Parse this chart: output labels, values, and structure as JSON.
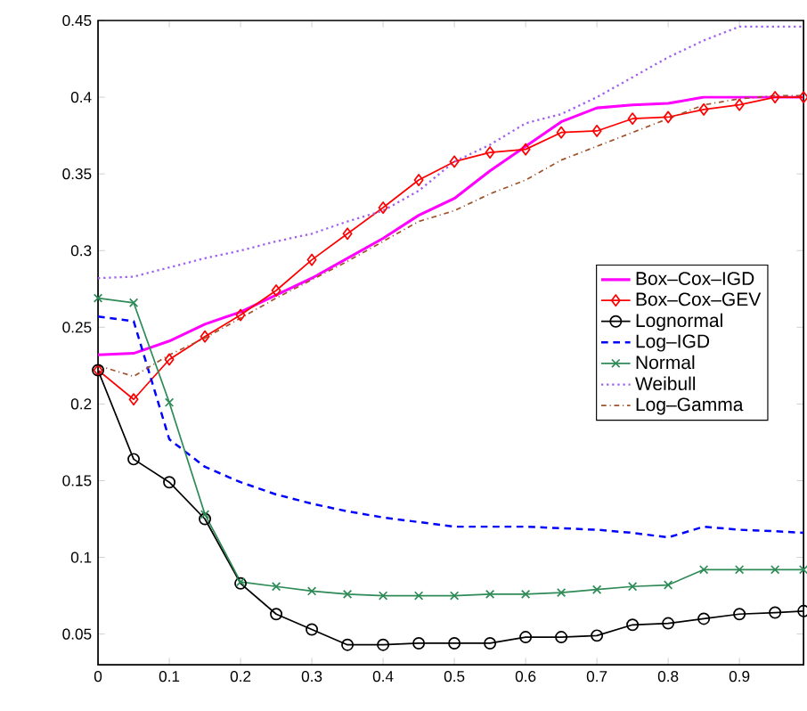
{
  "chart_data": {
    "type": "line",
    "x": [
      0,
      0.05,
      0.1,
      0.15,
      0.2,
      0.25,
      0.3,
      0.35,
      0.4,
      0.45,
      0.5,
      0.55,
      0.6,
      0.65,
      0.7,
      0.75,
      0.8,
      0.85,
      0.9,
      0.95,
      0.99
    ],
    "xlim": [
      0,
      0.99
    ],
    "ylim": [
      0.03,
      0.45
    ],
    "xticks": [
      0,
      0.1,
      0.2,
      0.3,
      0.4,
      0.5,
      0.6,
      0.7,
      0.8,
      0.9
    ],
    "yticks": [
      0.05,
      0.1,
      0.15,
      0.2,
      0.25,
      0.3,
      0.35,
      0.4,
      0.45
    ],
    "grid": false,
    "legend": "right",
    "series": [
      {
        "name": "Box–Cox–IGD",
        "color": "#ff00ff",
        "marker": "none",
        "line_style": "solid",
        "values": [
          0.232,
          0.233,
          0.241,
          0.252,
          0.26,
          0.271,
          0.282,
          0.295,
          0.308,
          0.323,
          0.334,
          0.352,
          0.368,
          0.384,
          0.393,
          0.395,
          0.396,
          0.4,
          0.4,
          0.4,
          0.4
        ]
      },
      {
        "name": "Box–Cox–GEV",
        "color": "#ff0000",
        "marker": "diamond",
        "line_style": "solid",
        "values": [
          0.222,
          0.203,
          0.229,
          0.244,
          0.258,
          0.274,
          0.294,
          0.311,
          0.328,
          0.346,
          0.358,
          0.364,
          0.366,
          0.377,
          0.378,
          0.386,
          0.387,
          0.392,
          0.395,
          0.4,
          0.4
        ]
      },
      {
        "name": "Lognormal",
        "color": "#000000",
        "marker": "circle",
        "line_style": "solid",
        "values": [
          0.222,
          0.164,
          0.149,
          0.125,
          0.083,
          0.063,
          0.053,
          0.043,
          0.043,
          0.044,
          0.044,
          0.044,
          0.048,
          0.048,
          0.049,
          0.056,
          0.057,
          0.06,
          0.063,
          0.064,
          0.065
        ]
      },
      {
        "name": "Log–IGD",
        "color": "#0000ff",
        "marker": "none",
        "line_style": "dashed",
        "values": [
          0.257,
          0.254,
          0.177,
          0.159,
          0.149,
          0.141,
          0.135,
          0.13,
          0.126,
          0.123,
          0.12,
          0.12,
          0.12,
          0.119,
          0.118,
          0.116,
          0.113,
          0.12,
          0.118,
          0.117,
          0.116
        ]
      },
      {
        "name": "Normal",
        "color": "#2e8b57",
        "marker": "cross",
        "line_style": "solid",
        "values": [
          0.269,
          0.266,
          0.201,
          0.128,
          0.084,
          0.081,
          0.078,
          0.076,
          0.075,
          0.075,
          0.075,
          0.076,
          0.076,
          0.077,
          0.079,
          0.081,
          0.082,
          0.092,
          0.092,
          0.092,
          0.092
        ]
      },
      {
        "name": "Weibull",
        "color": "#a060f0",
        "marker": "none",
        "line_style": "dotted",
        "values": [
          0.282,
          0.283,
          0.289,
          0.295,
          0.3,
          0.306,
          0.311,
          0.319,
          0.326,
          0.339,
          0.358,
          0.369,
          0.383,
          0.389,
          0.4,
          0.413,
          0.426,
          0.437,
          0.446,
          0.446,
          0.446
        ]
      },
      {
        "name": "Log–Gamma",
        "color": "#a0522d",
        "marker": "none",
        "line_style": "dashdot",
        "values": [
          0.225,
          0.218,
          0.232,
          0.243,
          0.256,
          0.269,
          0.281,
          0.293,
          0.306,
          0.319,
          0.326,
          0.337,
          0.346,
          0.359,
          0.368,
          0.377,
          0.386,
          0.395,
          0.399,
          0.401,
          0.401
        ]
      }
    ]
  }
}
